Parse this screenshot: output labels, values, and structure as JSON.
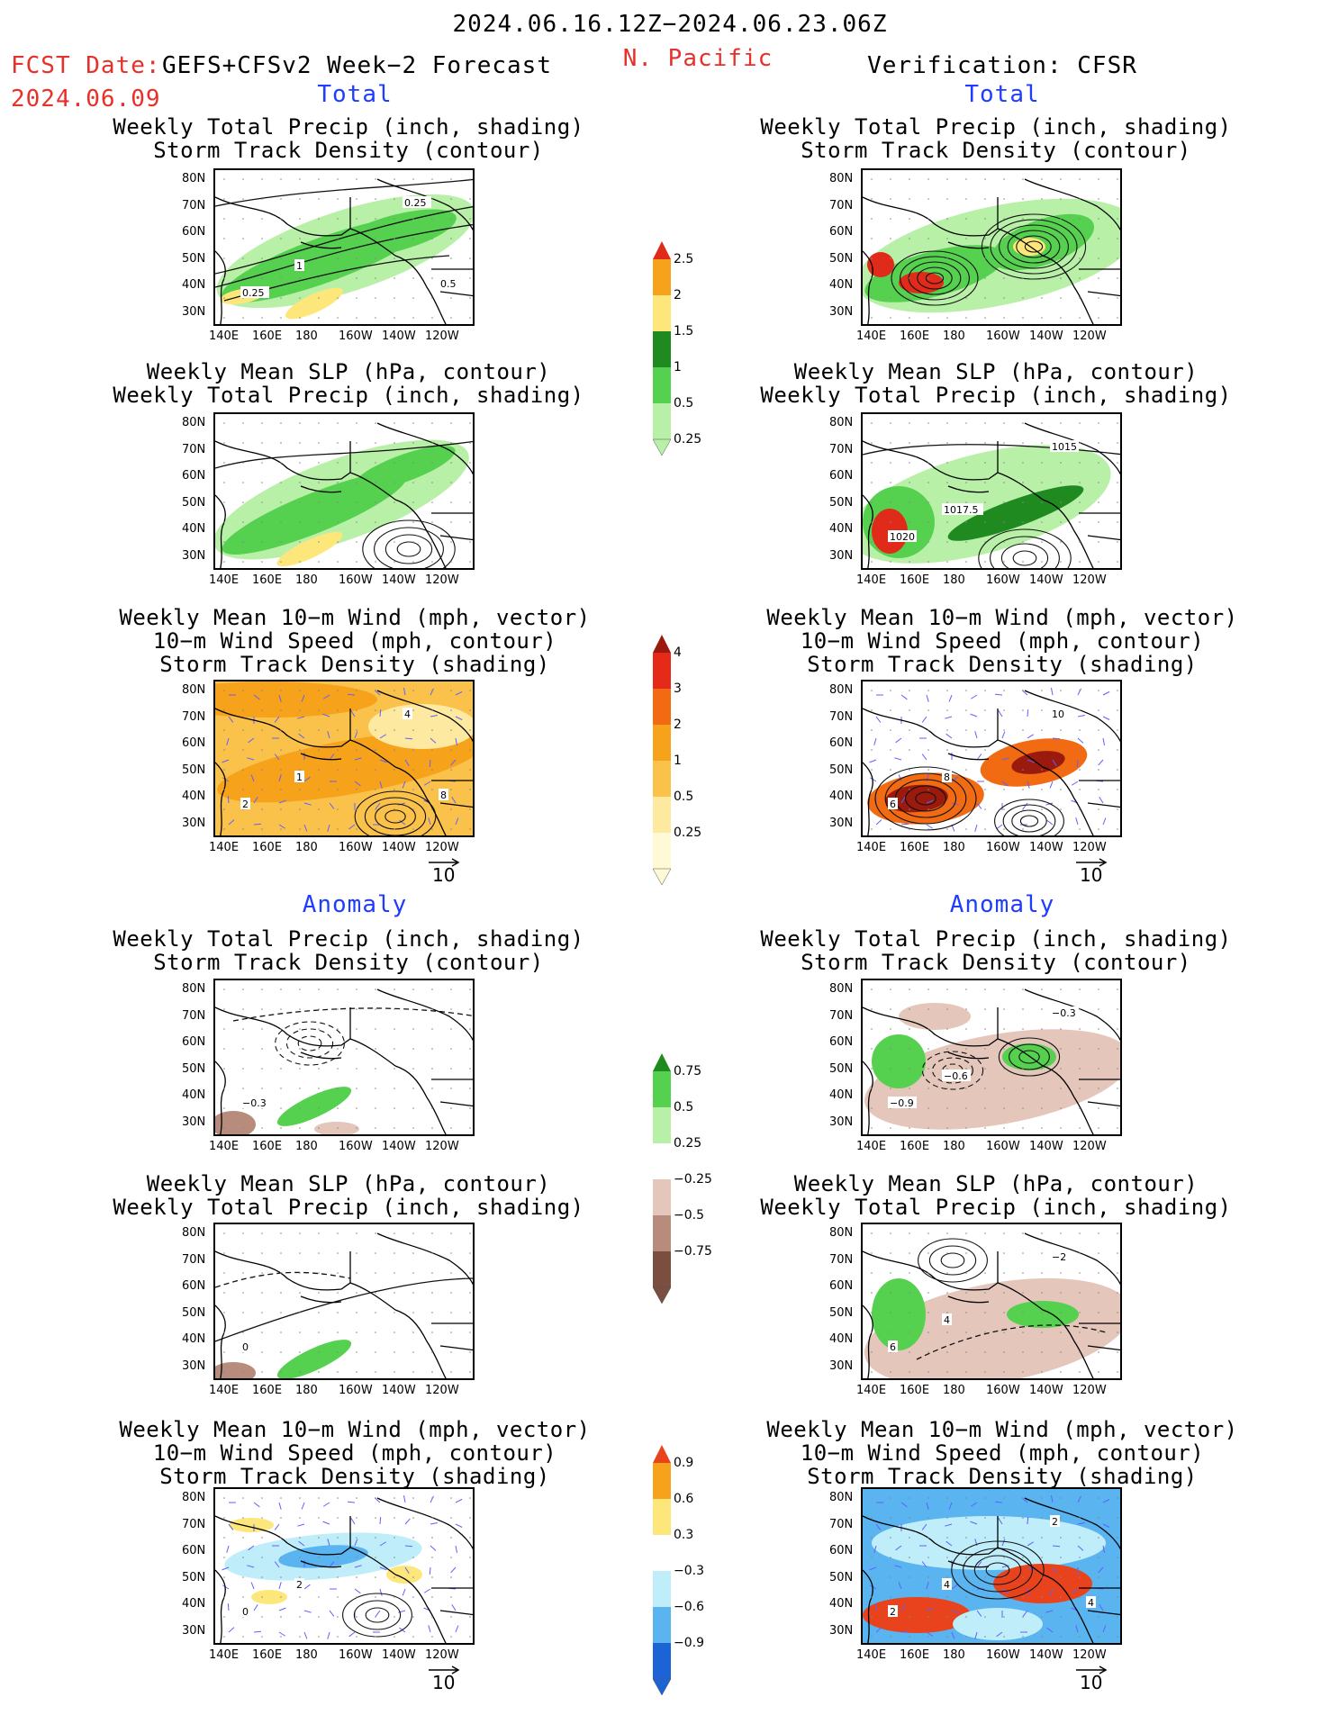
{
  "header": {
    "date_range": "2024.06.16.12Z−2024.06.23.06Z",
    "fcst_date_label": "FCST Date:",
    "fcst_date": "2024.06.09",
    "model": "GEFS+CFSv2 Week−2 Forecast",
    "region": "N. Pacific",
    "verification": "Verification: CFSR"
  },
  "sections": {
    "total": "Total",
    "anomaly": "Anomaly"
  },
  "titles": {
    "precip_storm": [
      "Weekly Total Precip (inch, shading)",
      "Storm Track Density (contour)"
    ],
    "slp_precip": [
      "Weekly Mean SLP (hPa, contour)",
      "Weekly Total Precip (inch, shading)"
    ],
    "wind_storm": [
      "Weekly Mean 10−m Wind (mph, vector)",
      "10−m Wind Speed (mph, contour)",
      "Storm Track Density (shading)"
    ]
  },
  "axes": {
    "lat": [
      "80N",
      "70N",
      "60N",
      "50N",
      "40N",
      "30N"
    ],
    "lon": [
      "140E",
      "160E",
      "180",
      "160W",
      "140W",
      "120W"
    ]
  },
  "vector_ref": "10",
  "colorbars": {
    "precip_total": {
      "labels": [
        "2.5",
        "2",
        "1.5",
        "1",
        "0.5",
        "0.25"
      ],
      "colors": [
        "#e02a1a",
        "#f7a21b",
        "#fde77a",
        "#1f8a1f",
        "#56d04f",
        "#b8f0a8"
      ]
    },
    "storm_total": {
      "labels": [
        "4",
        "3",
        "2",
        "1",
        "0.5",
        "0.25"
      ],
      "colors": [
        "#9a1a0d",
        "#e52a1a",
        "#f26a12",
        "#f7a21b",
        "#fac24a",
        "#fde9a0",
        "#fff9d6"
      ]
    },
    "precip_anom": {
      "labels": [
        "0.75",
        "0.5",
        "0.25",
        "−0.25",
        "−0.5",
        "−0.75"
      ],
      "colors": [
        "#1f8a1f",
        "#56d04f",
        "#b8f0a8",
        "#ffffff",
        "#e5c6bb",
        "#b88c7d",
        "#7a4f40"
      ]
    },
    "storm_anom": {
      "labels": [
        "0.9",
        "0.6",
        "0.3",
        "−0.3",
        "−0.6",
        "−0.9"
      ],
      "colors": [
        "#e8431c",
        "#f7a21b",
        "#fde77a",
        "#ffffff",
        "#bfeefa",
        "#5ab4f0",
        "#1c64d6"
      ]
    }
  },
  "contour_labels": {
    "fcst_precip_total": [
      "0.25",
      "1",
      "0.25",
      "0.5"
    ],
    "ver_slp_total": [
      "1020",
      "1017.5",
      "1015"
    ],
    "fcst_wind_total": [
      "2",
      "1",
      "4",
      "8"
    ],
    "ver_wind_total": [
      "6",
      "8",
      "10"
    ],
    "fcst_precip_anom": [
      "−0.3"
    ],
    "ver_precip_anom": [
      "−0.9",
      "−0.6",
      "−0.3"
    ],
    "fcst_slp_anom": [
      "0"
    ],
    "ver_slp_anom": [
      "6",
      "4",
      "−2"
    ],
    "fcst_wind_anom": [
      "0",
      "2"
    ],
    "ver_wind_anom": [
      "2",
      "4",
      "2",
      "4"
    ]
  },
  "colors": {
    "title_red": "#e8302a",
    "section_blue": "#1f3cff",
    "contour": "#111111",
    "vector": "#6060ff"
  }
}
